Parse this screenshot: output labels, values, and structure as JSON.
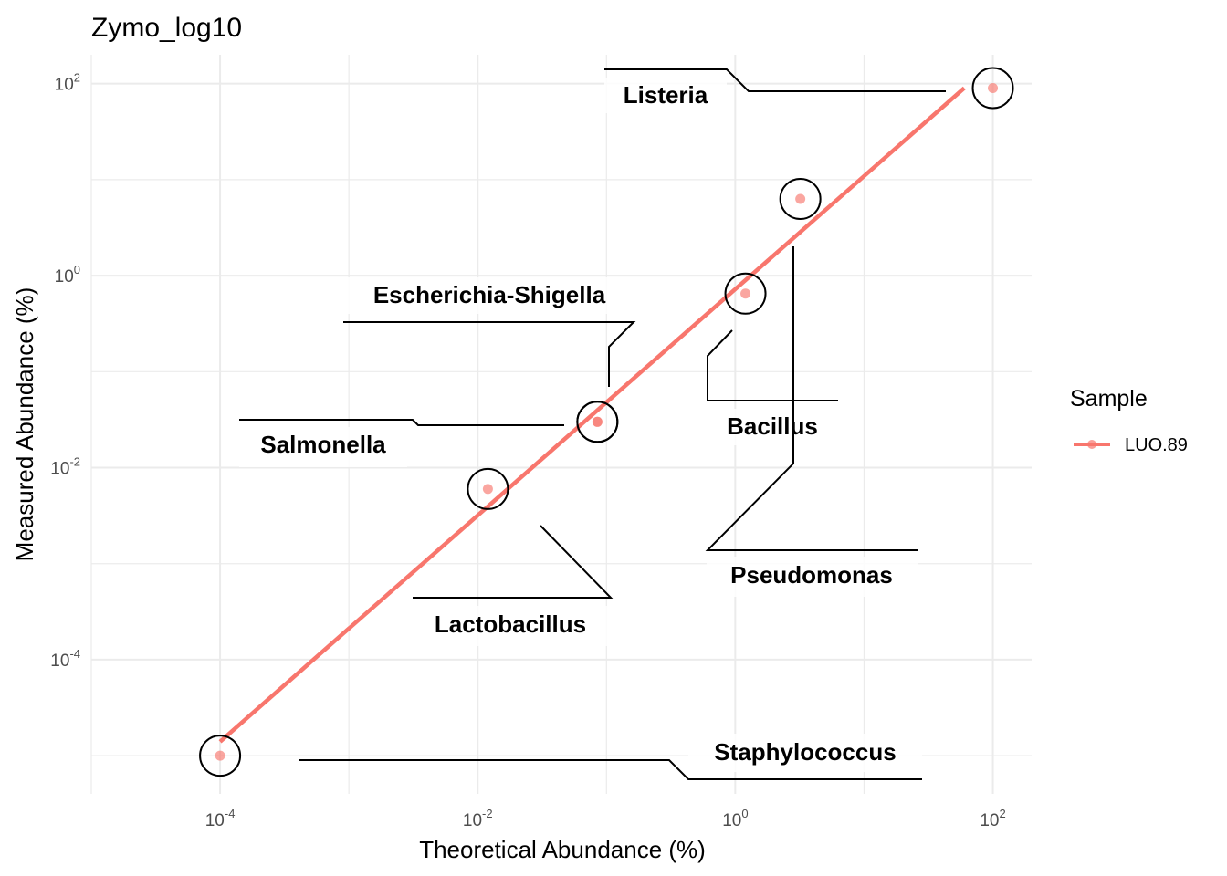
{
  "chart_data": {
    "type": "scatter",
    "title": "Zymo_log10",
    "xlabel": "Theoretical Abundance (%)",
    "ylabel": "Measured Abundance (%)",
    "x_scale": "log10",
    "y_scale": "log10",
    "xlim": [
      1e-05,
      200
    ],
    "ylim": [
      4e-06,
      200
    ],
    "x_ticks": [
      {
        "base": "10",
        "exp": "-4",
        "value": 0.0001
      },
      {
        "base": "10",
        "exp": "-2",
        "value": 0.01
      },
      {
        "base": "10",
        "exp": "0",
        "value": 1
      },
      {
        "base": "10",
        "exp": "2",
        "value": 100
      }
    ],
    "y_ticks": [
      {
        "base": "10",
        "exp": "2",
        "value": 100
      },
      {
        "base": "10",
        "exp": "0",
        "value": 1
      },
      {
        "base": "10",
        "exp": "-2",
        "value": 0.01
      },
      {
        "base": "10",
        "exp": "-4",
        "value": 0.0001
      }
    ],
    "grid": true,
    "legend": {
      "title": "Sample",
      "position": "right",
      "entries": [
        {
          "name": "LUO.89",
          "color": "#F8766D"
        }
      ]
    },
    "series": [
      {
        "name": "LUO.89",
        "color": "#F8766D",
        "points": [
          {
            "label": "Staphylococcus",
            "x": 0.0001,
            "y": 1e-05
          },
          {
            "label": "Lactobacillus",
            "x": 0.012,
            "y": 0.006
          },
          {
            "label": "Salmonella",
            "x": 0.085,
            "y": 0.03
          },
          {
            "label": "Escherichia-Shigella",
            "x": 0.085,
            "y": 0.03
          },
          {
            "label": "Bacillus",
            "x": 1.2,
            "y": 0.65
          },
          {
            "label": "Pseudomonas",
            "x": 3.2,
            "y": 6.3
          },
          {
            "label": "Listeria",
            "x": 100,
            "y": 90
          }
        ]
      }
    ],
    "fit_line": {
      "color": "#F8766D",
      "x": [
        0.0001,
        60
      ],
      "y": [
        1.4e-05,
        90
      ]
    }
  }
}
